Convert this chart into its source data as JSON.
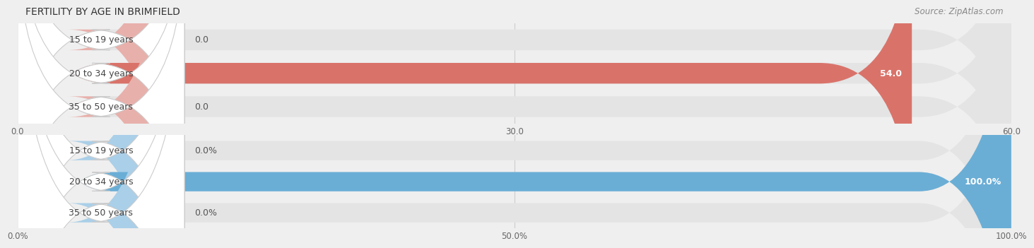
{
  "title": "FERTILITY BY AGE IN BRIMFIELD",
  "source": "Source: ZipAtlas.com",
  "top_chart": {
    "categories": [
      "15 to 19 years",
      "20 to 34 years",
      "35 to 50 years"
    ],
    "values": [
      0.0,
      54.0,
      0.0
    ],
    "bar_color_full": "#d9736a",
    "bar_color_empty": "#e8b0ab",
    "xlim": [
      0,
      60
    ],
    "xticks": [
      0.0,
      30.0,
      60.0
    ],
    "xtick_labels": [
      "0.0",
      "30.0",
      "60.0"
    ],
    "value_labels": [
      "0.0",
      "54.0",
      "0.0"
    ],
    "value_inside_threshold": 0.8
  },
  "bottom_chart": {
    "categories": [
      "15 to 19 years",
      "20 to 34 years",
      "35 to 50 years"
    ],
    "values": [
      0.0,
      100.0,
      0.0
    ],
    "bar_color_full": "#6aaed6",
    "bar_color_empty": "#aacfe8",
    "xlim": [
      0,
      100
    ],
    "xticks": [
      0.0,
      50.0,
      100.0
    ],
    "xtick_labels": [
      "0.0%",
      "50.0%",
      "100.0%"
    ],
    "value_labels": [
      "0.0%",
      "100.0%",
      "0.0%"
    ],
    "value_inside_threshold": 0.95
  },
  "bg_color": "#efefef",
  "bar_bg_color": "#e4e4e4",
  "label_bg_color": "#ffffff",
  "bar_height": 0.62,
  "label_fontsize": 9,
  "tick_fontsize": 8.5,
  "title_fontsize": 10,
  "source_fontsize": 8.5
}
